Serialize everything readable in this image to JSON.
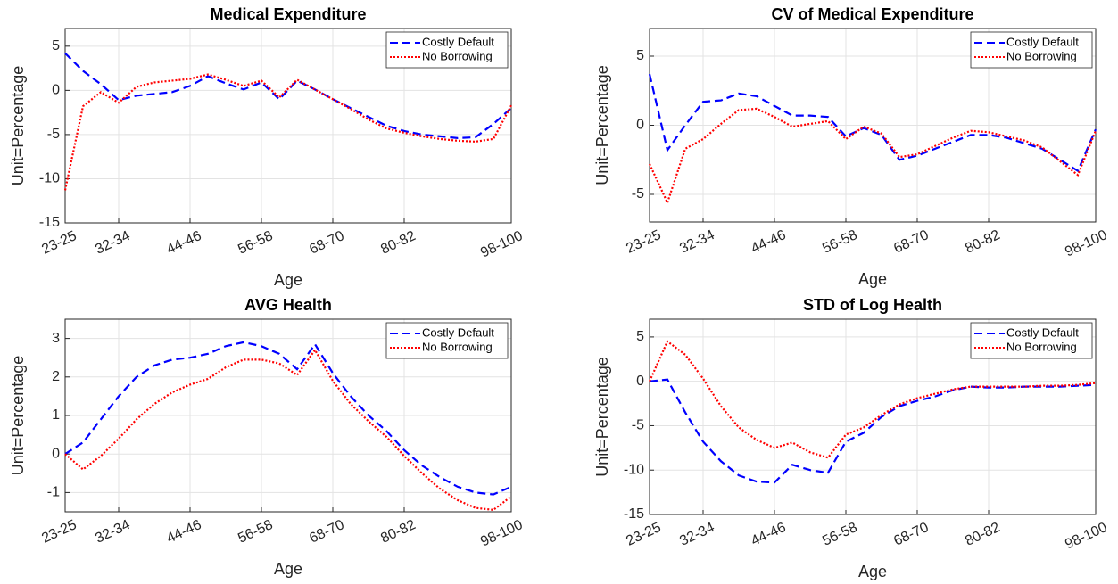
{
  "chart_data": [
    {
      "type": "line",
      "title": "Medical Expenditure",
      "xlabel": "Age",
      "ylabel": "Unit=Percentage",
      "categories": [
        "23-25",
        null,
        null,
        "32-34",
        null,
        null,
        null,
        "44-46",
        null,
        null,
        null,
        "56-58",
        null,
        null,
        null,
        "68-70",
        null,
        null,
        null,
        "80-82",
        null,
        null,
        null,
        null,
        null,
        "98-100"
      ],
      "ylim": [
        -15,
        7
      ],
      "yticks": [
        -15,
        -10,
        -5,
        0,
        5
      ],
      "grid": true,
      "legend": "northeast",
      "series": [
        {
          "name": "Costly Default",
          "color": "#0000ff",
          "linestyle": "dashed",
          "values": [
            4.2,
            2.2,
            0.7,
            -1.1,
            -0.6,
            -0.4,
            -0.2,
            0.5,
            1.6,
            0.8,
            0.1,
            0.9,
            -1.0,
            1.1,
            0.1,
            -1.0,
            -2.0,
            -3.0,
            -4.0,
            -4.6,
            -5.0,
            -5.2,
            -5.4,
            -5.3,
            -3.8,
            -2.0
          ]
        },
        {
          "name": "No Borrowing",
          "color": "#ff0000",
          "linestyle": "dotted",
          "values": [
            -11.3,
            -1.8,
            -0.2,
            -1.4,
            0.4,
            0.9,
            1.1,
            1.3,
            1.8,
            1.2,
            0.5,
            1.1,
            -0.8,
            1.2,
            0.1,
            -1.0,
            -2.1,
            -3.3,
            -4.3,
            -4.8,
            -5.2,
            -5.5,
            -5.7,
            -5.8,
            -5.5,
            -1.7
          ]
        }
      ]
    },
    {
      "type": "line",
      "title": "CV of Medical Expenditure",
      "xlabel": "Age",
      "ylabel": "Unit=Percentage",
      "categories": [
        "23-25",
        null,
        null,
        "32-34",
        null,
        null,
        null,
        "44-46",
        null,
        null,
        null,
        "56-58",
        null,
        null,
        null,
        "68-70",
        null,
        null,
        null,
        "80-82",
        null,
        null,
        null,
        null,
        null,
        "98-100"
      ],
      "ylim": [
        -7,
        7
      ],
      "yticks": [
        -5,
        0,
        5
      ],
      "grid": true,
      "legend": "northeast",
      "series": [
        {
          "name": "Costly Default",
          "color": "#0000ff",
          "linestyle": "dashed",
          "values": [
            3.7,
            -1.8,
            0,
            1.7,
            1.8,
            2.3,
            2.1,
            1.4,
            0.7,
            0.7,
            0.6,
            -0.8,
            -0.2,
            -0.7,
            -2.5,
            -2.2,
            -1.7,
            -1.2,
            -0.7,
            -0.7,
            -0.9,
            -1.3,
            -1.7,
            -2.5,
            -3.3,
            -0.3
          ]
        },
        {
          "name": "No Borrowing",
          "color": "#ff0000",
          "linestyle": "dotted",
          "values": [
            -2.8,
            -5.6,
            -1.7,
            -1.0,
            0.1,
            1.1,
            1.2,
            0.6,
            -0.1,
            0.1,
            0.3,
            -1.0,
            -0.1,
            -0.6,
            -2.3,
            -2.1,
            -1.5,
            -0.9,
            -0.4,
            -0.5,
            -0.8,
            -1.1,
            -1.6,
            -2.6,
            -3.6,
            -0.4
          ]
        }
      ]
    },
    {
      "type": "line",
      "title": "AVG Health",
      "xlabel": "Age",
      "ylabel": "Unit=Percentage",
      "categories": [
        "23-25",
        null,
        null,
        "32-34",
        null,
        null,
        null,
        "44-46",
        null,
        null,
        null,
        "56-58",
        null,
        null,
        null,
        "68-70",
        null,
        null,
        null,
        "80-82",
        null,
        null,
        null,
        null,
        null,
        "98-100"
      ],
      "ylim": [
        -1.5,
        3.5
      ],
      "yticks": [
        -1,
        0,
        1,
        2,
        3
      ],
      "grid": true,
      "legend": "northeast",
      "series": [
        {
          "name": "Costly Default",
          "color": "#0000ff",
          "linestyle": "dashed",
          "values": [
            0,
            0.3,
            0.9,
            1.5,
            2.0,
            2.3,
            2.45,
            2.5,
            2.6,
            2.8,
            2.9,
            2.8,
            2.6,
            2.2,
            2.85,
            2.1,
            1.5,
            1.0,
            0.6,
            0.1,
            -0.3,
            -0.6,
            -0.85,
            -1.0,
            -1.05,
            -0.85
          ]
        },
        {
          "name": "No Borrowing",
          "color": "#ff0000",
          "linestyle": "dotted",
          "values": [
            0,
            -0.4,
            -0.05,
            0.4,
            0.9,
            1.3,
            1.6,
            1.8,
            1.95,
            2.25,
            2.45,
            2.45,
            2.35,
            2.05,
            2.7,
            1.9,
            1.3,
            0.85,
            0.45,
            -0.05,
            -0.5,
            -0.9,
            -1.2,
            -1.4,
            -1.45,
            -1.1
          ]
        }
      ]
    },
    {
      "type": "line",
      "title": "STD of Log Health",
      "xlabel": "Age",
      "ylabel": "Unit=Percentage",
      "categories": [
        "23-25",
        null,
        null,
        "32-34",
        null,
        null,
        null,
        "44-46",
        null,
        null,
        null,
        "56-58",
        null,
        null,
        null,
        "68-70",
        null,
        null,
        null,
        "80-82",
        null,
        null,
        null,
        null,
        null,
        "98-100"
      ],
      "ylim": [
        -15,
        7
      ],
      "yticks": [
        -15,
        -10,
        -5,
        0,
        5
      ],
      "grid": true,
      "legend": "northeast",
      "series": [
        {
          "name": "Costly Default",
          "color": "#0000ff",
          "linestyle": "dashed",
          "values": [
            0,
            0.2,
            -3.5,
            -6.8,
            -9.0,
            -10.6,
            -11.3,
            -11.4,
            -9.4,
            -10.0,
            -10.3,
            -6.8,
            -5.8,
            -4.0,
            -2.8,
            -2.2,
            -1.7,
            -1.0,
            -0.6,
            -0.7,
            -0.7,
            -0.6,
            -0.6,
            -0.6,
            -0.5,
            -0.4
          ]
        },
        {
          "name": "No Borrowing",
          "color": "#ff0000",
          "linestyle": "dotted",
          "values": [
            0,
            4.5,
            3.0,
            0.3,
            -2.8,
            -5.2,
            -6.6,
            -7.5,
            -6.9,
            -8.0,
            -8.6,
            -6.0,
            -5.2,
            -3.8,
            -2.6,
            -1.9,
            -1.4,
            -0.9,
            -0.6,
            -0.6,
            -0.6,
            -0.6,
            -0.5,
            -0.5,
            -0.4,
            -0.2
          ]
        }
      ]
    }
  ]
}
